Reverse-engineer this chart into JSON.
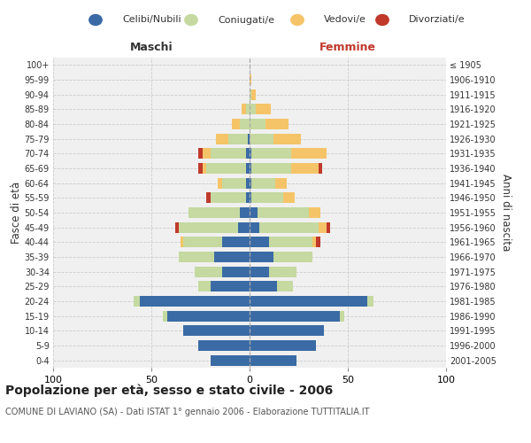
{
  "age_groups": [
    "0-4",
    "5-9",
    "10-14",
    "15-19",
    "20-24",
    "25-29",
    "30-34",
    "35-39",
    "40-44",
    "45-49",
    "50-54",
    "55-59",
    "60-64",
    "65-69",
    "70-74",
    "75-79",
    "80-84",
    "85-89",
    "90-94",
    "95-99",
    "100+"
  ],
  "birth_years": [
    "2001-2005",
    "1996-2000",
    "1991-1995",
    "1986-1990",
    "1981-1985",
    "1976-1980",
    "1971-1975",
    "1966-1970",
    "1961-1965",
    "1956-1960",
    "1951-1955",
    "1946-1950",
    "1941-1945",
    "1936-1940",
    "1931-1935",
    "1926-1930",
    "1921-1925",
    "1916-1920",
    "1911-1915",
    "1906-1910",
    "≤ 1905"
  ],
  "maschi_celibi": [
    20,
    26,
    34,
    42,
    56,
    20,
    14,
    18,
    14,
    6,
    5,
    2,
    2,
    2,
    2,
    1,
    0,
    0,
    0,
    0,
    0
  ],
  "maschi_coniugati": [
    0,
    0,
    0,
    2,
    3,
    6,
    14,
    18,
    20,
    30,
    26,
    18,
    12,
    20,
    18,
    10,
    5,
    2,
    0,
    0,
    0
  ],
  "maschi_vedovi": [
    0,
    0,
    0,
    0,
    0,
    0,
    0,
    0,
    1,
    0,
    0,
    0,
    2,
    2,
    4,
    6,
    4,
    2,
    0,
    0,
    0
  ],
  "maschi_divorziati": [
    0,
    0,
    0,
    0,
    0,
    0,
    0,
    0,
    0,
    2,
    0,
    2,
    0,
    2,
    2,
    0,
    0,
    0,
    0,
    0,
    0
  ],
  "femmine_nubili": [
    24,
    34,
    38,
    46,
    60,
    14,
    10,
    12,
    10,
    5,
    4,
    1,
    1,
    1,
    1,
    0,
    0,
    0,
    0,
    0,
    0
  ],
  "femmine_coniugate": [
    0,
    0,
    0,
    2,
    3,
    8,
    14,
    20,
    22,
    30,
    26,
    16,
    12,
    20,
    20,
    12,
    8,
    3,
    1,
    0,
    0
  ],
  "femmine_vedove": [
    0,
    0,
    0,
    0,
    0,
    0,
    0,
    0,
    2,
    4,
    6,
    6,
    6,
    14,
    18,
    14,
    12,
    8,
    2,
    1,
    0
  ],
  "femmine_divorziate": [
    0,
    0,
    0,
    0,
    0,
    0,
    0,
    0,
    2,
    2,
    0,
    0,
    0,
    2,
    0,
    0,
    0,
    0,
    0,
    0,
    0
  ],
  "color_celibi": "#3a6ba5",
  "color_coniugati": "#c5d9a0",
  "color_vedovi": "#f5c469",
  "color_divorziati": "#c0392b",
  "xlim": 100,
  "title": "Popolazione per età, sesso e stato civile - 2006",
  "subtitle": "COMUNE DI LAVIANO (SA) - Dati ISTAT 1° gennaio 2006 - Elaborazione TUTTITALIA.IT",
  "ylabel_left": "Fasce di età",
  "ylabel_right": "Anni di nascita",
  "label_maschi": "Maschi",
  "label_femmine": "Femmine",
  "legend_labels": [
    "Celibi/Nubili",
    "Coniugati/e",
    "Vedovi/e",
    "Divorziati/e"
  ],
  "bg_color": "#f0f0f0",
  "grid_color": "#cccccc"
}
